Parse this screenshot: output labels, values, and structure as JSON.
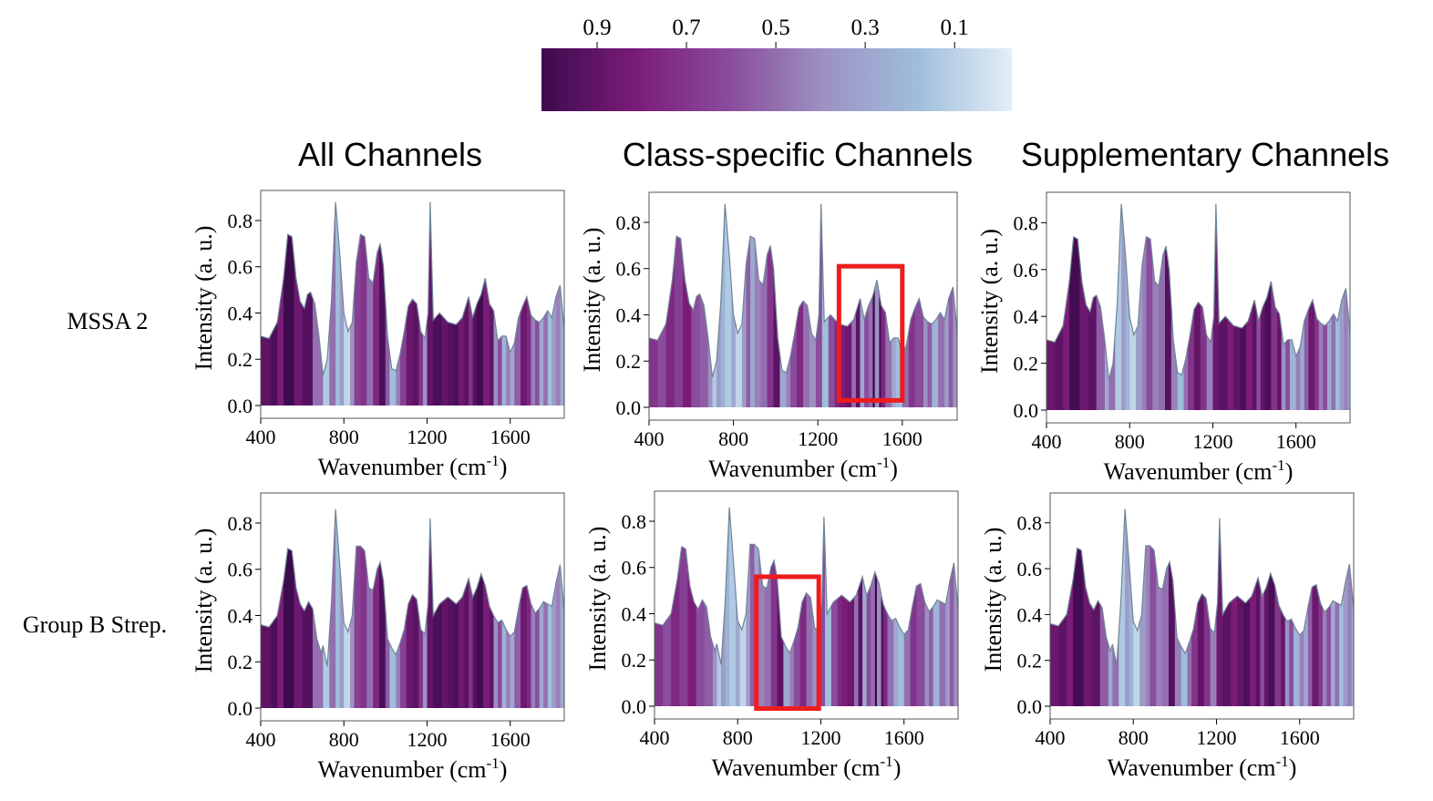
{
  "colorbar": {
    "ticks": [
      "0.9",
      "0.7",
      "0.5",
      "0.3",
      "0.1"
    ],
    "tick_values": [
      0.9,
      0.7,
      0.5,
      0.3,
      0.1
    ],
    "colors": [
      "#3d0a4e",
      "#7a1c78",
      "#8a4c9c",
      "#9c91c2",
      "#9fbedc",
      "#e4eef6"
    ]
  },
  "column_titles": [
    "All Channels",
    "Class-specific Channels",
    "Supplementary Channels"
  ],
  "row_labels": [
    "MSSA 2",
    "Group B Strep."
  ],
  "axes": {
    "xlabel_text": "Wavenumber (cm",
    "xlabel_sup": "-1",
    "xlabel_close": ")",
    "ylabel": "Intensity (a. u.)",
    "xticks": [
      "400",
      "800",
      "1200",
      "1600"
    ],
    "yticks": [
      "0.0",
      "0.2",
      "0.4",
      "0.6",
      "0.8"
    ],
    "xlim": [
      400,
      1860
    ],
    "ylim": [
      0,
      0.93
    ]
  },
  "highlight_color": "#ee1c1c",
  "line_color": "#6e8596",
  "chart_data": {
    "type": "area",
    "xlim": [
      400,
      1860
    ],
    "ylim": [
      0,
      0.93
    ],
    "series": [
      {
        "row": 0,
        "x": [
          400,
          440,
          480,
          510,
          530,
          550,
          570,
          590,
          610,
          625,
          640,
          660,
          680,
          700,
          720,
          740,
          760,
          780,
          800,
          820,
          840,
          860,
          880,
          900,
          920,
          940,
          960,
          975,
          990,
          1010,
          1030,
          1050,
          1070,
          1090,
          1110,
          1130,
          1150,
          1170,
          1190,
          1205,
          1215,
          1230,
          1260,
          1300,
          1340,
          1370,
          1400,
          1420,
          1440,
          1460,
          1480,
          1500,
          1520,
          1540,
          1560,
          1580,
          1600,
          1620,
          1640,
          1660,
          1680,
          1700,
          1720,
          1740,
          1760,
          1780,
          1800,
          1820,
          1840,
          1860
        ],
        "y": [
          0.3,
          0.29,
          0.36,
          0.55,
          0.74,
          0.73,
          0.55,
          0.45,
          0.42,
          0.48,
          0.49,
          0.44,
          0.3,
          0.13,
          0.2,
          0.45,
          0.88,
          0.66,
          0.4,
          0.32,
          0.36,
          0.62,
          0.74,
          0.73,
          0.55,
          0.53,
          0.66,
          0.7,
          0.6,
          0.3,
          0.16,
          0.15,
          0.22,
          0.32,
          0.43,
          0.46,
          0.44,
          0.32,
          0.29,
          0.4,
          0.88,
          0.37,
          0.4,
          0.36,
          0.35,
          0.38,
          0.47,
          0.38,
          0.44,
          0.48,
          0.55,
          0.44,
          0.41,
          0.28,
          0.3,
          0.3,
          0.23,
          0.27,
          0.38,
          0.43,
          0.47,
          0.39,
          0.37,
          0.36,
          0.38,
          0.41,
          0.38,
          0.47,
          0.52,
          0.33
        ]
      },
      {
        "row": 1,
        "x": [
          400,
          440,
          480,
          510,
          530,
          550,
          570,
          590,
          610,
          630,
          650,
          670,
          690,
          700,
          720,
          740,
          760,
          780,
          800,
          820,
          840,
          860,
          880,
          900,
          920,
          940,
          960,
          975,
          990,
          1010,
          1030,
          1050,
          1070,
          1090,
          1110,
          1130,
          1150,
          1170,
          1190,
          1205,
          1215,
          1230,
          1260,
          1300,
          1340,
          1370,
          1400,
          1420,
          1440,
          1460,
          1480,
          1500,
          1520,
          1540,
          1560,
          1580,
          1600,
          1620,
          1640,
          1660,
          1680,
          1700,
          1720,
          1740,
          1760,
          1780,
          1800,
          1820,
          1840,
          1860
        ],
        "y": [
          0.36,
          0.35,
          0.4,
          0.55,
          0.69,
          0.68,
          0.52,
          0.45,
          0.42,
          0.46,
          0.43,
          0.3,
          0.24,
          0.27,
          0.18,
          0.45,
          0.86,
          0.62,
          0.37,
          0.33,
          0.4,
          0.7,
          0.7,
          0.68,
          0.52,
          0.51,
          0.6,
          0.63,
          0.55,
          0.3,
          0.26,
          0.23,
          0.28,
          0.34,
          0.45,
          0.49,
          0.47,
          0.34,
          0.32,
          0.45,
          0.82,
          0.4,
          0.45,
          0.48,
          0.45,
          0.48,
          0.56,
          0.48,
          0.52,
          0.58,
          0.53,
          0.44,
          0.4,
          0.37,
          0.38,
          0.34,
          0.31,
          0.33,
          0.43,
          0.52,
          0.53,
          0.45,
          0.41,
          0.43,
          0.46,
          0.45,
          0.44,
          0.54,
          0.62,
          0.42
        ]
      }
    ],
    "importance_segments": {
      "all": [
        [
          400,
          0.9
        ],
        [
          450,
          0.95
        ],
        [
          480,
          0.8
        ],
        [
          510,
          1.0
        ],
        [
          560,
          0.85
        ],
        [
          600,
          0.92
        ],
        [
          650,
          0.5
        ],
        [
          700,
          0.15
        ],
        [
          730,
          0.5
        ],
        [
          760,
          0.2
        ],
        [
          780,
          0.35
        ],
        [
          800,
          0.1
        ],
        [
          830,
          0.4
        ],
        [
          850,
          0.65
        ],
        [
          880,
          0.7
        ],
        [
          910,
          0.5
        ],
        [
          940,
          0.75
        ],
        [
          970,
          0.95
        ],
        [
          1000,
          0.55
        ],
        [
          1020,
          0.2
        ],
        [
          1050,
          0.45
        ],
        [
          1070,
          0.65
        ],
        [
          1100,
          0.85
        ],
        [
          1130,
          0.9
        ],
        [
          1160,
          0.7
        ],
        [
          1180,
          0.4
        ],
        [
          1200,
          0.88
        ],
        [
          1230,
          0.95
        ],
        [
          1270,
          0.88
        ],
        [
          1300,
          0.92
        ],
        [
          1330,
          0.96
        ],
        [
          1350,
          0.85
        ],
        [
          1380,
          0.9
        ],
        [
          1400,
          0.7
        ],
        [
          1420,
          0.92
        ],
        [
          1440,
          0.98
        ],
        [
          1470,
          0.8
        ],
        [
          1500,
          0.88
        ],
        [
          1520,
          0.4
        ],
        [
          1540,
          0.6
        ],
        [
          1560,
          0.25
        ],
        [
          1580,
          0.45
        ],
        [
          1600,
          0.3
        ],
        [
          1620,
          0.55
        ],
        [
          1650,
          0.85
        ],
        [
          1680,
          0.75
        ],
        [
          1700,
          0.45
        ],
        [
          1720,
          0.6
        ],
        [
          1740,
          0.3
        ],
        [
          1760,
          0.5
        ],
        [
          1780,
          0.2
        ],
        [
          1800,
          0.35
        ],
        [
          1820,
          0.45
        ],
        [
          1840,
          0.3
        ],
        [
          1860,
          0.3
        ]
      ],
      "class": [
        [
          400,
          0.7
        ],
        [
          440,
          0.6
        ],
        [
          480,
          0.75
        ],
        [
          520,
          0.65
        ],
        [
          560,
          0.8
        ],
        [
          600,
          0.6
        ],
        [
          640,
          0.55
        ],
        [
          680,
          0.4
        ],
        [
          700,
          0.15
        ],
        [
          720,
          0.35
        ],
        [
          740,
          0.25
        ],
        [
          760,
          0.15
        ],
        [
          790,
          0.3
        ],
        [
          810,
          0.1
        ],
        [
          840,
          0.35
        ],
        [
          860,
          0.55
        ],
        [
          880,
          0.3
        ],
        [
          900,
          0.45
        ],
        [
          930,
          0.5
        ],
        [
          960,
          0.7
        ],
        [
          990,
          0.9
        ],
        [
          1020,
          0.3
        ],
        [
          1050,
          0.45
        ],
        [
          1070,
          0.6
        ],
        [
          1100,
          0.75
        ],
        [
          1130,
          0.5
        ],
        [
          1160,
          0.4
        ],
        [
          1190,
          0.6
        ],
        [
          1220,
          0.2
        ],
        [
          1250,
          0.6
        ],
        [
          1280,
          0.75
        ],
        [
          1300,
          0.8
        ],
        [
          1330,
          0.85
        ],
        [
          1360,
          0.5
        ],
        [
          1380,
          0.9
        ],
        [
          1400,
          0.3
        ],
        [
          1420,
          0.6
        ],
        [
          1440,
          0.5
        ],
        [
          1460,
          1.0
        ],
        [
          1470,
          0.4
        ],
        [
          1490,
          0.95
        ],
        [
          1500,
          0.75
        ],
        [
          1520,
          0.5
        ],
        [
          1550,
          0.3
        ],
        [
          1570,
          0.2
        ],
        [
          1600,
          0.5
        ],
        [
          1630,
          0.7
        ],
        [
          1660,
          0.6
        ],
        [
          1700,
          0.4
        ],
        [
          1720,
          0.55
        ],
        [
          1740,
          0.25
        ],
        [
          1770,
          0.5
        ],
        [
          1800,
          0.35
        ],
        [
          1820,
          0.55
        ],
        [
          1840,
          0.4
        ],
        [
          1860,
          0.4
        ]
      ],
      "supp": [
        [
          400,
          0.85
        ],
        [
          440,
          0.9
        ],
        [
          480,
          0.8
        ],
        [
          510,
          0.98
        ],
        [
          560,
          0.85
        ],
        [
          600,
          0.9
        ],
        [
          640,
          0.55
        ],
        [
          680,
          0.3
        ],
        [
          700,
          0.5
        ],
        [
          730,
          0.15
        ],
        [
          760,
          0.35
        ],
        [
          780,
          0.25
        ],
        [
          800,
          0.1
        ],
        [
          830,
          0.35
        ],
        [
          860,
          0.45
        ],
        [
          880,
          0.6
        ],
        [
          910,
          0.45
        ],
        [
          940,
          0.5
        ],
        [
          970,
          0.92
        ],
        [
          1000,
          0.45
        ],
        [
          1030,
          0.2
        ],
        [
          1060,
          0.5
        ],
        [
          1080,
          0.7
        ],
        [
          1110,
          0.88
        ],
        [
          1140,
          0.7
        ],
        [
          1170,
          0.45
        ],
        [
          1200,
          0.85
        ],
        [
          1230,
          0.9
        ],
        [
          1270,
          0.8
        ],
        [
          1300,
          0.88
        ],
        [
          1330,
          0.95
        ],
        [
          1360,
          0.8
        ],
        [
          1390,
          0.9
        ],
        [
          1410,
          0.6
        ],
        [
          1430,
          0.88
        ],
        [
          1450,
          0.96
        ],
        [
          1480,
          0.7
        ],
        [
          1510,
          0.88
        ],
        [
          1530,
          0.4
        ],
        [
          1550,
          0.6
        ],
        [
          1570,
          0.25
        ],
        [
          1600,
          0.45
        ],
        [
          1620,
          0.3
        ],
        [
          1640,
          0.55
        ],
        [
          1660,
          0.85
        ],
        [
          1690,
          0.7
        ],
        [
          1710,
          0.45
        ],
        [
          1730,
          0.6
        ],
        [
          1750,
          0.3
        ],
        [
          1770,
          0.5
        ],
        [
          1790,
          0.2
        ],
        [
          1810,
          0.35
        ],
        [
          1830,
          0.45
        ],
        [
          1850,
          0.3
        ],
        [
          1860,
          0.3
        ]
      ]
    },
    "highlights": [
      {
        "row": 0,
        "col": 1,
        "x_range": [
          1300,
          1600
        ],
        "y_range": [
          0.03,
          0.61
        ]
      },
      {
        "row": 1,
        "col": 1,
        "x_range": [
          890,
          1190
        ],
        "y_range": [
          -0.01,
          0.56
        ]
      }
    ]
  }
}
